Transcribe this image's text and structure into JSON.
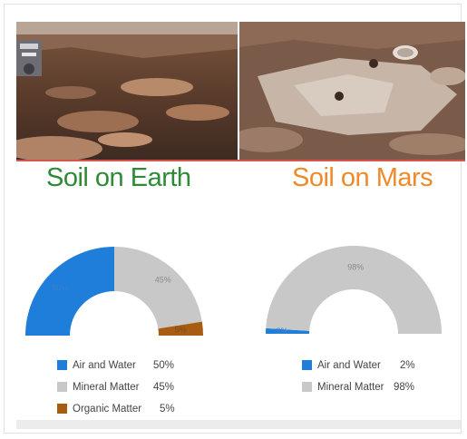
{
  "titles": {
    "earth": "Soil on Earth",
    "mars": "Soil on Mars"
  },
  "colors": {
    "air_water": "#1e7ed9",
    "mineral": "#c8c8c8",
    "organic": "#a75c12",
    "earth_title": "#2e8b35",
    "mars_title": "#ee8a2a",
    "divider": "#d9534f"
  },
  "images": {
    "earth": "photo of reddish-brown rocky terrain with a rover wheel at left",
    "mars": "close-up of pale Martian rock surface with drilled holes"
  },
  "chart_data": [
    {
      "type": "pie",
      "variant": "half-donut",
      "categories": [
        "Air and Water",
        "Mineral Matter",
        "Organic Matter"
      ],
      "values": [
        50,
        45,
        5
      ],
      "data_labels": [
        "50%",
        "45%",
        "5%"
      ],
      "legend_values": [
        "50%",
        "45%",
        "5%"
      ],
      "title": "Soil on Earth",
      "legend": "bottom"
    },
    {
      "type": "pie",
      "variant": "half-donut",
      "categories": [
        "Air and Water",
        "Mineral Matter"
      ],
      "values": [
        2,
        98
      ],
      "data_labels": [
        "2%",
        "98%"
      ],
      "legend_values": [
        "2%",
        "98%"
      ],
      "title": "Soil on Mars",
      "legend": "bottom"
    }
  ]
}
